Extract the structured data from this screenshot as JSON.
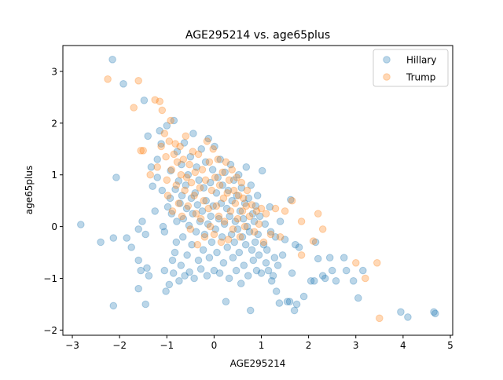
{
  "chart_data": {
    "type": "scatter",
    "title": "AGE295214 vs. age65plus",
    "xlabel": "AGE295214",
    "ylabel": "age65plus",
    "xlim": [
      -3.2,
      5.05
    ],
    "ylim": [
      -2.1,
      3.5
    ],
    "xticks": [
      -3,
      -2,
      -1,
      0,
      1,
      2,
      3,
      4,
      5
    ],
    "yticks": [
      -2,
      -1,
      0,
      1,
      2,
      3
    ],
    "grid": false,
    "legend_position": "top-right",
    "series": [
      {
        "name": "Hillary",
        "color": "#1f77b4",
        "points": [
          [
            -2.82,
            0.04
          ],
          [
            -2.4,
            -0.3
          ],
          [
            -2.13,
            -0.22
          ],
          [
            -2.13,
            -1.53
          ],
          [
            -2.15,
            3.23
          ],
          [
            -2.07,
            0.95
          ],
          [
            -1.92,
            2.76
          ],
          [
            -1.85,
            -0.22
          ],
          [
            -1.75,
            -0.4
          ],
          [
            -1.6,
            -0.05
          ],
          [
            -1.6,
            -0.65
          ],
          [
            -1.55,
            -0.85
          ],
          [
            -1.6,
            -1.2
          ],
          [
            -1.52,
            0.1
          ],
          [
            -1.45,
            -0.15
          ],
          [
            -1.42,
            -0.8
          ],
          [
            -1.38,
            -0.95
          ],
          [
            -1.45,
            -1.5
          ],
          [
            -1.48,
            2.44
          ],
          [
            -1.4,
            1.75
          ],
          [
            -1.33,
            1.15
          ],
          [
            -1.3,
            0.78
          ],
          [
            -1.25,
            0.3
          ],
          [
            -1.2,
            1.3
          ],
          [
            -1.2,
            0.95
          ],
          [
            -1.15,
            1.85
          ],
          [
            -1.12,
            1.6
          ],
          [
            -1.1,
            0.7
          ],
          [
            -1.08,
            0.0
          ],
          [
            -1.05,
            -0.1
          ],
          [
            -1.05,
            -0.85
          ],
          [
            -1.02,
            -1.25
          ],
          [
            -1.0,
            1.95
          ],
          [
            -0.98,
            0.38
          ],
          [
            -0.95,
            -1.12
          ],
          [
            -0.93,
            0.55
          ],
          [
            -0.92,
            1.08
          ],
          [
            -0.9,
            0.25
          ],
          [
            -0.88,
            -0.65
          ],
          [
            -0.86,
            -0.9
          ],
          [
            -0.85,
            2.05
          ],
          [
            -0.83,
            -0.5
          ],
          [
            -0.82,
            0.72
          ],
          [
            -0.8,
            -0.3
          ],
          [
            -0.79,
            0.1
          ],
          [
            -0.78,
            1.45
          ],
          [
            -0.75,
            0.88
          ],
          [
            -0.74,
            -1.05
          ],
          [
            -0.72,
            0.45
          ],
          [
            -0.7,
            -0.75
          ],
          [
            -0.69,
            1.2
          ],
          [
            -0.68,
            0.6
          ],
          [
            -0.66,
            -0.2
          ],
          [
            -0.65,
            0.15
          ],
          [
            -0.63,
            1.62
          ],
          [
            -0.62,
            -0.95
          ],
          [
            -0.6,
            0.8
          ],
          [
            -0.58,
            0.35
          ],
          [
            -0.57,
            -0.55
          ],
          [
            -0.55,
            1.0
          ],
          [
            -0.53,
            0.02
          ],
          [
            -0.52,
            -0.88
          ],
          [
            -0.5,
            1.35
          ],
          [
            -0.48,
            0.55
          ],
          [
            -0.47,
            -0.35
          ],
          [
            -0.45,
            0.25
          ],
          [
            -0.44,
            1.8
          ],
          [
            -0.42,
            -1.0
          ],
          [
            -0.4,
            0.65
          ],
          [
            -0.38,
            -0.1
          ],
          [
            -0.37,
            1.15
          ],
          [
            -0.35,
            0.42
          ],
          [
            -0.33,
            -0.65
          ],
          [
            -0.32,
            0.9
          ],
          [
            -0.3,
            0.1
          ],
          [
            -0.28,
            -0.82
          ],
          [
            -0.27,
            1.5
          ],
          [
            -0.25,
            0.3
          ],
          [
            -0.23,
            -0.45
          ],
          [
            -0.22,
            0.75
          ],
          [
            -0.2,
            -0.15
          ],
          [
            -0.18,
            1.25
          ],
          [
            -0.17,
            0.5
          ],
          [
            -0.15,
            -0.95
          ],
          [
            -0.13,
            0.05
          ],
          [
            -0.12,
            1.7
          ],
          [
            -0.1,
            -0.6
          ],
          [
            -0.08,
            0.85
          ],
          [
            -0.07,
            0.2
          ],
          [
            -0.05,
            -0.3
          ],
          [
            -0.03,
            1.1
          ],
          [
            -0.02,
            0.4
          ],
          [
            0.0,
            -0.85
          ],
          [
            0.01,
            1.55
          ],
          [
            0.03,
            -0.05
          ],
          [
            0.05,
            0.65
          ],
          [
            0.06,
            -0.5
          ],
          [
            0.08,
            0.95
          ],
          [
            0.1,
            0.15
          ],
          [
            0.12,
            -0.9
          ],
          [
            0.13,
            1.3
          ],
          [
            0.15,
            0.45
          ],
          [
            0.17,
            -0.2
          ],
          [
            0.18,
            0.8
          ],
          [
            0.2,
            -0.7
          ],
          [
            0.22,
            0.05
          ],
          [
            0.23,
            1.05
          ],
          [
            0.25,
            -1.45
          ],
          [
            0.27,
            0.35
          ],
          [
            0.28,
            -0.4
          ],
          [
            0.3,
            0.7
          ],
          [
            0.32,
            -1.0
          ],
          [
            0.33,
            0.2
          ],
          [
            0.35,
            1.2
          ],
          [
            0.37,
            -0.15
          ],
          [
            0.38,
            0.5
          ],
          [
            0.4,
            -0.6
          ],
          [
            0.42,
            0.9
          ],
          [
            0.43,
            -0.3
          ],
          [
            0.45,
            0.1
          ],
          [
            0.47,
            -0.85
          ],
          [
            0.48,
            0.6
          ],
          [
            0.5,
            -0.05
          ],
          [
            0.52,
            1.0
          ],
          [
            0.53,
            -0.5
          ],
          [
            0.55,
            0.3
          ],
          [
            0.57,
            -1.1
          ],
          [
            0.58,
            0.75
          ],
          [
            0.6,
            -0.2
          ],
          [
            0.62,
            0.15
          ],
          [
            0.63,
            -0.75
          ],
          [
            0.65,
            0.45
          ],
          [
            0.67,
            -0.35
          ],
          [
            0.68,
            1.15
          ],
          [
            0.7,
            0.0
          ],
          [
            0.72,
            -0.95
          ],
          [
            0.73,
            0.55
          ],
          [
            0.75,
            -0.1
          ],
          [
            0.77,
            -1.62
          ],
          [
            0.78,
            0.8
          ],
          [
            0.8,
            -0.45
          ],
          [
            0.82,
            0.25
          ],
          [
            0.83,
            -0.65
          ],
          [
            0.85,
            0.1
          ],
          [
            0.87,
            -0.3
          ],
          [
            0.88,
            0.4
          ],
          [
            0.9,
            -0.85
          ],
          [
            0.92,
            0.6
          ],
          [
            0.93,
            -0.15
          ],
          [
            0.95,
            -0.55
          ],
          [
            0.97,
            0.2
          ],
          [
            1.0,
            -0.9
          ],
          [
            1.02,
            1.08
          ],
          [
            1.05,
            -0.35
          ],
          [
            1.08,
            0.05
          ],
          [
            1.1,
            -0.7
          ],
          [
            1.12,
            -0.45
          ],
          [
            1.15,
            -0.85
          ],
          [
            1.18,
            0.38
          ],
          [
            1.2,
            -0.1
          ],
          [
            1.22,
            -1.05
          ],
          [
            1.25,
            -0.95
          ],
          [
            1.28,
            -0.6
          ],
          [
            1.3,
            -0.2
          ],
          [
            1.32,
            -1.25
          ],
          [
            1.35,
            -0.75
          ],
          [
            1.38,
            -1.48
          ],
          [
            1.4,
            0.1
          ],
          [
            1.45,
            -0.55
          ],
          [
            1.5,
            -0.25
          ],
          [
            1.55,
            -1.45
          ],
          [
            1.6,
            -1.45
          ],
          [
            1.62,
            0.52
          ],
          [
            1.65,
            -0.9
          ],
          [
            1.7,
            -1.62
          ],
          [
            1.72,
            -0.35
          ],
          [
            1.75,
            -1.5
          ],
          [
            1.8,
            -0.4
          ],
          [
            1.9,
            -1.35
          ],
          [
            2.05,
            -1.05
          ],
          [
            2.12,
            -1.05
          ],
          [
            2.15,
            -0.3
          ],
          [
            2.2,
            -0.62
          ],
          [
            2.3,
            -0.95
          ],
          [
            2.35,
            -1.0
          ],
          [
            2.45,
            -0.6
          ],
          [
            2.5,
            -0.85
          ],
          [
            2.58,
            -1.05
          ],
          [
            2.75,
            -0.6
          ],
          [
            2.8,
            -0.85
          ],
          [
            2.95,
            -1.05
          ],
          [
            3.05,
            -1.38
          ],
          [
            3.15,
            -0.85
          ],
          [
            3.95,
            -1.65
          ],
          [
            4.1,
            -1.75
          ],
          [
            4.65,
            -1.65
          ],
          [
            4.68,
            -1.68
          ]
        ]
      },
      {
        "name": "Trump",
        "color": "#ff7f0e",
        "points": [
          [
            -2.25,
            2.85
          ],
          [
            -1.7,
            2.3
          ],
          [
            -1.6,
            2.82
          ],
          [
            -1.55,
            1.47
          ],
          [
            -1.5,
            1.47
          ],
          [
            -1.35,
            1.0
          ],
          [
            -1.25,
            2.45
          ],
          [
            -1.2,
            1.15
          ],
          [
            -1.15,
            2.42
          ],
          [
            -1.12,
            1.55
          ],
          [
            -1.1,
            2.25
          ],
          [
            -1.05,
            1.8
          ],
          [
            -1.02,
            1.35
          ],
          [
            -1.0,
            0.9
          ],
          [
            -0.98,
            0.6
          ],
          [
            -0.95,
            1.65
          ],
          [
            -0.92,
            2.05
          ],
          [
            -0.9,
            1.1
          ],
          [
            -0.88,
            0.3
          ],
          [
            -0.85,
            1.4
          ],
          [
            -0.82,
            1.6
          ],
          [
            -0.8,
            0.8
          ],
          [
            -0.78,
            1.25
          ],
          [
            -0.75,
            0.45
          ],
          [
            -0.72,
            1.55
          ],
          [
            -0.7,
            1.0
          ],
          [
            -0.68,
            0.2
          ],
          [
            -0.65,
            1.3
          ],
          [
            -0.62,
            0.7
          ],
          [
            -0.6,
            1.75
          ],
          [
            -0.58,
            0.95
          ],
          [
            -0.55,
            0.4
          ],
          [
            -0.52,
            1.2
          ],
          [
            -0.5,
            -0.05
          ],
          [
            -0.48,
            0.85
          ],
          [
            -0.45,
            1.45
          ],
          [
            -0.42,
            0.6
          ],
          [
            -0.4,
            1.05
          ],
          [
            -0.38,
            0.25
          ],
          [
            -0.35,
            -0.35
          ],
          [
            -0.33,
            1.4
          ],
          [
            -0.3,
            0.75
          ],
          [
            -0.28,
            0.15
          ],
          [
            -0.25,
            1.1
          ],
          [
            -0.22,
            0.5
          ],
          [
            -0.2,
            -0.2
          ],
          [
            -0.18,
            0.9
          ],
          [
            -0.15,
            1.65
          ],
          [
            -0.12,
            0.35
          ],
          [
            -0.1,
            1.25
          ],
          [
            -0.08,
            0.0
          ],
          [
            -0.05,
            0.7
          ],
          [
            -0.02,
            1.5
          ],
          [
            0.0,
            -0.15
          ],
          [
            0.02,
            0.95
          ],
          [
            0.05,
            0.4
          ],
          [
            0.08,
            1.3
          ],
          [
            0.1,
            0.2
          ],
          [
            0.12,
            0.8
          ],
          [
            0.15,
            -0.3
          ],
          [
            0.18,
            1.05
          ],
          [
            0.2,
            0.55
          ],
          [
            0.22,
            0.1
          ],
          [
            0.25,
            1.25
          ],
          [
            0.28,
            0.65
          ],
          [
            0.3,
            -0.25
          ],
          [
            0.32,
            0.9
          ],
          [
            0.35,
            0.3
          ],
          [
            0.38,
            1.1
          ],
          [
            0.4,
            -0.05
          ],
          [
            0.42,
            0.7
          ],
          [
            0.45,
            0.45
          ],
          [
            0.48,
            0.95
          ],
          [
            0.5,
            0.15
          ],
          [
            0.52,
            0.6
          ],
          [
            0.55,
            -0.2
          ],
          [
            0.58,
            0.85
          ],
          [
            0.6,
            0.3
          ],
          [
            0.62,
            0.55
          ],
          [
            0.65,
            0.0
          ],
          [
            0.68,
            0.4
          ],
          [
            0.7,
            0.7
          ],
          [
            0.75,
            0.2
          ],
          [
            0.8,
            0.42
          ],
          [
            0.85,
            -0.1
          ],
          [
            0.9,
            0.3
          ],
          [
            0.95,
            0.05
          ],
          [
            1.0,
            0.35
          ],
          [
            1.05,
            -0.3
          ],
          [
            1.1,
            0.25
          ],
          [
            1.2,
            -0.15
          ],
          [
            1.3,
            0.35
          ],
          [
            1.4,
            -0.2
          ],
          [
            1.5,
            0.3
          ],
          [
            1.65,
            0.5
          ],
          [
            1.85,
            -0.55
          ],
          [
            2.1,
            -0.28
          ],
          [
            2.2,
            0.25
          ],
          [
            3.0,
            -0.7
          ],
          [
            3.2,
            -1.0
          ],
          [
            3.45,
            -0.7
          ],
          [
            3.5,
            -1.77
          ],
          [
            1.85,
            0.1
          ],
          [
            2.3,
            -0.05
          ]
        ]
      }
    ]
  }
}
